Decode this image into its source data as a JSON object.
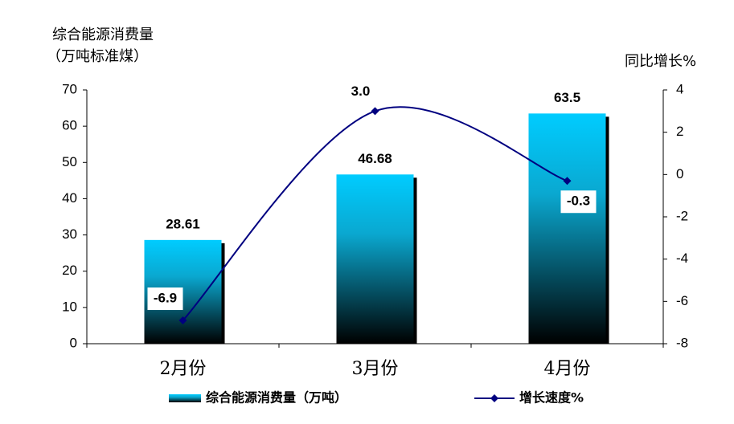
{
  "chart_data": {
    "type": "bar-line",
    "y_label": [
      "综合能源消费量",
      "（万吨标准煤）"
    ],
    "y2_label": "同比增长%",
    "categories": [
      "2月份",
      "3月份",
      "4月份"
    ],
    "series": [
      {
        "name": "综合能源消费量（万吨）",
        "type": "bar",
        "color": "#00ccff",
        "values": [
          28.61,
          46.68,
          63.5
        ]
      },
      {
        "name": "增长速度%",
        "type": "line",
        "axis": "y2",
        "color": "#000080",
        "values": [
          -6.9,
          3.0,
          -0.3
        ],
        "value_labels": [
          "-6.9",
          "3.0",
          "-0.3"
        ]
      }
    ],
    "ylim": [
      0,
      70
    ],
    "yticks": [
      0,
      10,
      20,
      30,
      40,
      50,
      60,
      70
    ],
    "y2lim": [
      -8,
      4
    ],
    "y2ticks": [
      -8,
      -6,
      -4,
      -2,
      0,
      2,
      4
    ]
  }
}
